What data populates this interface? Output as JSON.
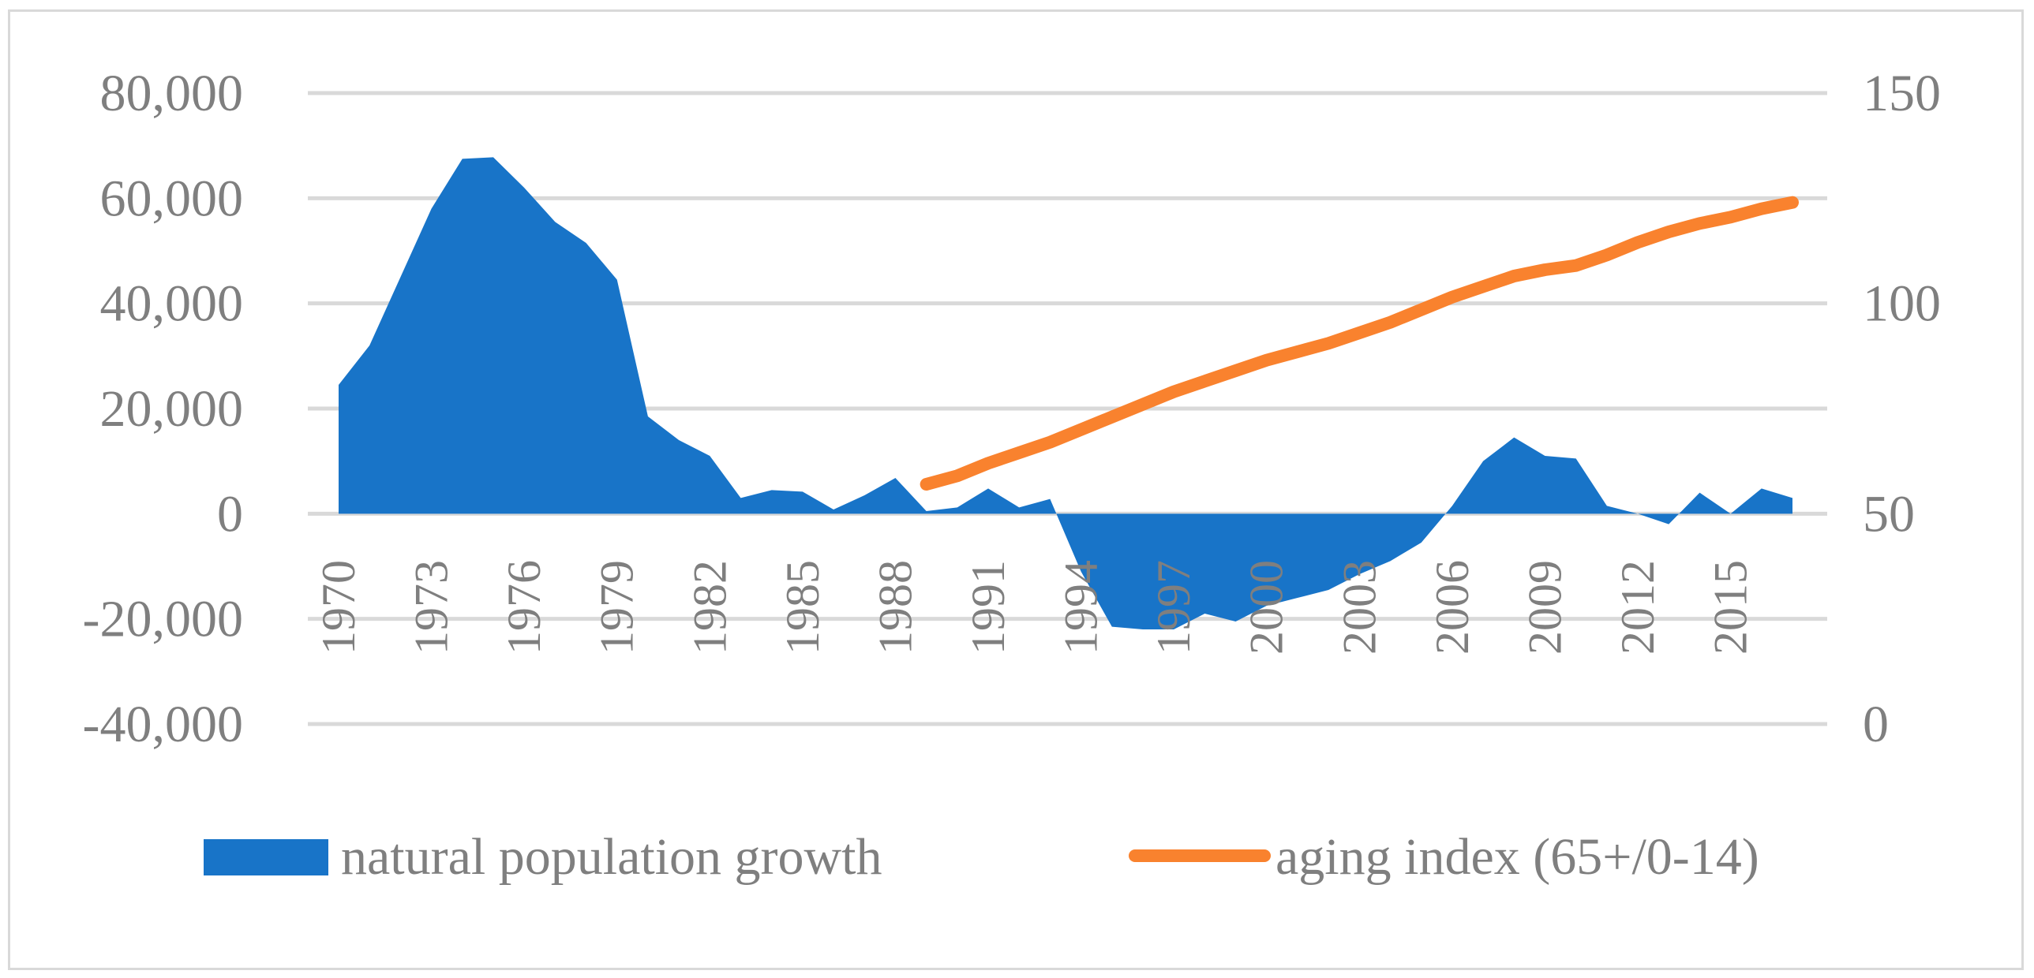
{
  "chart_data": {
    "type": "area+line",
    "title": "",
    "xlabel": "",
    "ylabel": "",
    "x": [
      1970,
      1971,
      1972,
      1973,
      1974,
      1975,
      1976,
      1977,
      1978,
      1979,
      1980,
      1981,
      1982,
      1983,
      1984,
      1985,
      1986,
      1987,
      1988,
      1989,
      1990,
      1991,
      1992,
      1993,
      1994,
      1995,
      1996,
      1997,
      1998,
      1999,
      2000,
      2001,
      2002,
      2003,
      2004,
      2005,
      2006,
      2007,
      2008,
      2009,
      2010,
      2011,
      2012,
      2013,
      2014,
      2015,
      2016,
      2017
    ],
    "x_tick_labels": [
      "1970",
      "1973",
      "1976",
      "1979",
      "1982",
      "1985",
      "1988",
      "1991",
      "1994",
      "1997",
      "2000",
      "2003",
      "2006",
      "2009",
      "2012",
      "2015"
    ],
    "y_left": {
      "ylim": [
        -40000,
        80000
      ],
      "ticks": [
        -40000,
        -20000,
        0,
        20000,
        40000,
        60000,
        80000
      ],
      "tick_labels": [
        "-40,000",
        "-20,000",
        "0",
        "20,000",
        "40,000",
        "60,000",
        "80,000"
      ]
    },
    "y_right": {
      "ylim": [
        0,
        150
      ],
      "ticks": [
        0,
        50,
        100,
        150
      ],
      "tick_labels": [
        "0",
        "50",
        "100",
        "150"
      ]
    },
    "grid": true,
    "legend_position": "bottom",
    "series": [
      {
        "name": "natural population growth",
        "type": "area",
        "axis": "left",
        "color": "#1874c8",
        "values": [
          24500,
          32000,
          45000,
          58000,
          67500,
          67800,
          62000,
          55500,
          51500,
          44500,
          18500,
          14000,
          11000,
          3000,
          4500,
          4200,
          800,
          3500,
          6800,
          500,
          1200,
          4800,
          1200,
          2800,
          -11000,
          -21500,
          -22000,
          -22000,
          -19000,
          -20500,
          -17500,
          -16000,
          -14500,
          -11500,
          -9000,
          -5500,
          1500,
          10000,
          14500,
          11000,
          10500,
          1500,
          0,
          -2000,
          4000,
          0,
          4800,
          3000
        ]
      },
      {
        "name": "aging index (65+/0-14)",
        "type": "line",
        "axis": "right",
        "color": "#f9822e",
        "start_year": 1989,
        "values": [
          null,
          null,
          null,
          null,
          null,
          null,
          null,
          null,
          null,
          null,
          null,
          null,
          null,
          null,
          null,
          null,
          null,
          null,
          null,
          57,
          59,
          62,
          64.5,
          67,
          70,
          73,
          76,
          79,
          81.5,
          84,
          86.5,
          88.5,
          90.5,
          93,
          95.5,
          98.5,
          101.5,
          104,
          106.5,
          108,
          109,
          111.5,
          114.5,
          117,
          119,
          120.5,
          122.5,
          124
        ]
      }
    ]
  }
}
